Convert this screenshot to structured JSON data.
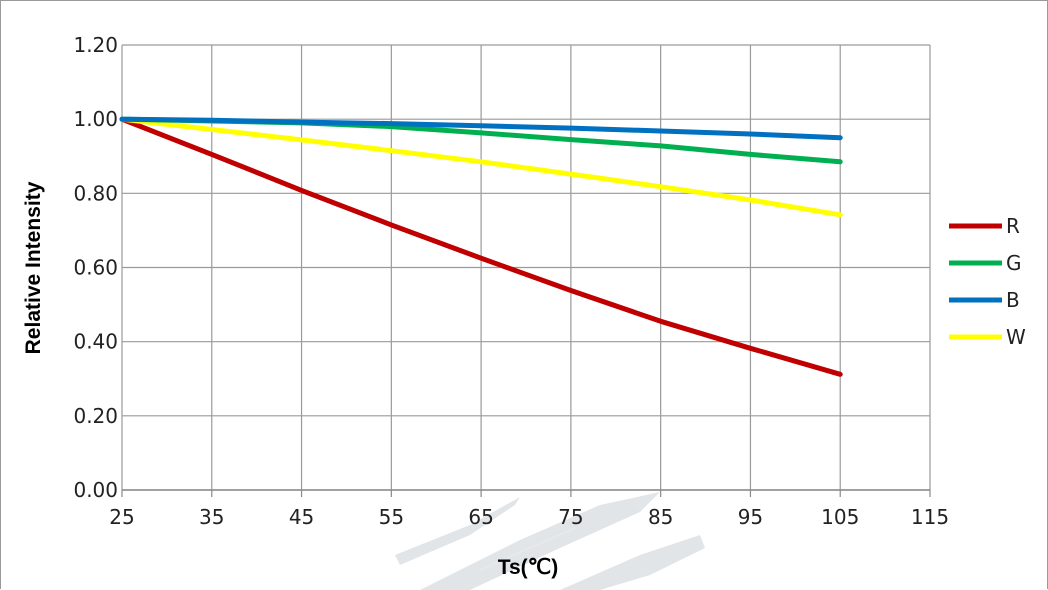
{
  "chart_data": {
    "type": "line",
    "title": "",
    "xlabel": "Ts(℃)",
    "ylabel": "Relative Intensity",
    "xlim": [
      25,
      115
    ],
    "ylim": [
      0,
      1.2
    ],
    "x_ticks": [
      "25",
      "35",
      "45",
      "55",
      "65",
      "75",
      "85",
      "95",
      "105",
      "115"
    ],
    "y_ticks": [
      "0.00",
      "0.20",
      "0.40",
      "0.60",
      "0.80",
      "1.00",
      "1.20"
    ],
    "grid": true,
    "legend_position": "right",
    "x": [
      25,
      35,
      45,
      55,
      65,
      75,
      85,
      95,
      105
    ],
    "series": [
      {
        "name": "R",
        "color": "#c00000",
        "values": [
          1.0,
          0.905,
          0.808,
          0.715,
          0.625,
          0.538,
          0.455,
          0.382,
          0.312
        ]
      },
      {
        "name": "G",
        "color": "#00b050",
        "values": [
          1.0,
          0.995,
          0.99,
          0.98,
          0.963,
          0.945,
          0.928,
          0.905,
          0.885
        ]
      },
      {
        "name": "B",
        "color": "#0070c0",
        "values": [
          1.0,
          0.997,
          0.992,
          0.988,
          0.982,
          0.976,
          0.968,
          0.96,
          0.95
        ]
      },
      {
        "name": "W",
        "color": "#ffff00",
        "values": [
          1.0,
          0.972,
          0.944,
          0.915,
          0.885,
          0.852,
          0.818,
          0.782,
          0.742
        ]
      }
    ]
  }
}
